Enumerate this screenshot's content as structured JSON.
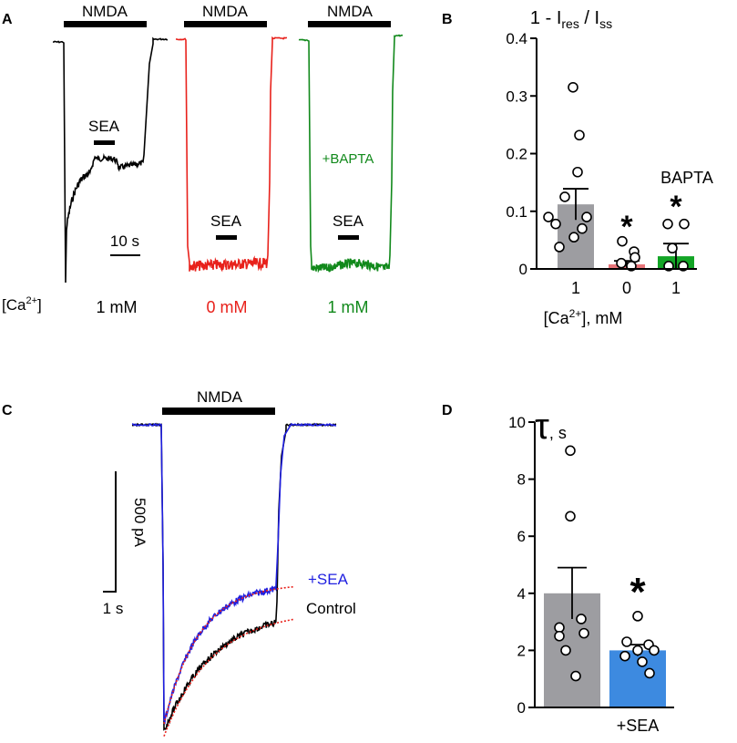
{
  "panel_labels": {
    "a": "A",
    "b": "B",
    "c": "C",
    "d": "D"
  },
  "colors": {
    "control": "#000000",
    "zero_ca": "#e8211b",
    "bapta": "#11891b",
    "sea": "#1f1fe0",
    "fit": "#e8211b",
    "bar_grey": "#9d9da1",
    "bar_red": "#e8757a",
    "bar_green": "#13a526",
    "bar_blue": "#3d8ae0"
  },
  "panel_a": {
    "nmda_label": "NMDA",
    "sea_label": "SEA",
    "bapta_label": "+BAPTA",
    "scale_label": "10 s",
    "ca_row_label": "[Ca",
    "ca_row_sup": "2+",
    "ca_row_close": "]",
    "traces": [
      {
        "name": "control",
        "condition": "1 mM"
      },
      {
        "name": "zero-calcium",
        "condition": "0 mM"
      },
      {
        "name": "bapta",
        "condition": "1 mM"
      }
    ]
  },
  "chart_data": [
    {
      "panel": "B",
      "type": "bar",
      "title": "1 - I",
      "title_sub1": "res",
      "title_mid": " / I",
      "title_sub2": "ss",
      "xlabel": "[Ca",
      "xlabel_sup": "2+",
      "xlabel_close": "], mM",
      "categories": [
        "1",
        "0",
        "1"
      ],
      "values": [
        0.112,
        0.008,
        0.022
      ],
      "sem": [
        0.027,
        0.006,
        0.022
      ],
      "points": [
        [
          0.315,
          0.232,
          0.168,
          0.125,
          0.09,
          0.09,
          0.078,
          0.07,
          0.055,
          0.038
        ],
        [
          0.048,
          0.03,
          0.02,
          0.01,
          0.005
        ],
        [
          0.078,
          0.078,
          0.036,
          0.005,
          0.005
        ]
      ],
      "significance": [
        "",
        "*",
        "*"
      ],
      "annotation": "BAPTA",
      "ylim": [
        0,
        0.4
      ],
      "yticks": [
        "0",
        "0.1",
        "0.2",
        "0.3",
        "0.4"
      ]
    },
    {
      "panel": "C",
      "type": "line",
      "title": "NMDA",
      "series": [
        {
          "name": "+SEA"
        },
        {
          "name": "Control"
        }
      ],
      "scale_y_label": "500 pA",
      "scale_x_label": "1 s"
    },
    {
      "panel": "D",
      "type": "bar",
      "title": "τ",
      "title_unit": ", s",
      "categories": [
        "",
        "+SEA"
      ],
      "values": [
        4.0,
        2.0
      ],
      "sem": [
        0.9,
        0.2
      ],
      "points": [
        [
          9.0,
          6.7,
          3.1,
          2.8,
          2.6,
          2.5,
          2.0,
          1.1
        ],
        [
          3.2,
          2.3,
          2.2,
          2.0,
          2.0,
          1.8,
          1.6,
          1.2
        ]
      ],
      "significance": [
        "",
        "*"
      ],
      "ylim": [
        0,
        10
      ],
      "yticks": [
        "0",
        "2",
        "4",
        "6",
        "8",
        "10"
      ]
    }
  ]
}
